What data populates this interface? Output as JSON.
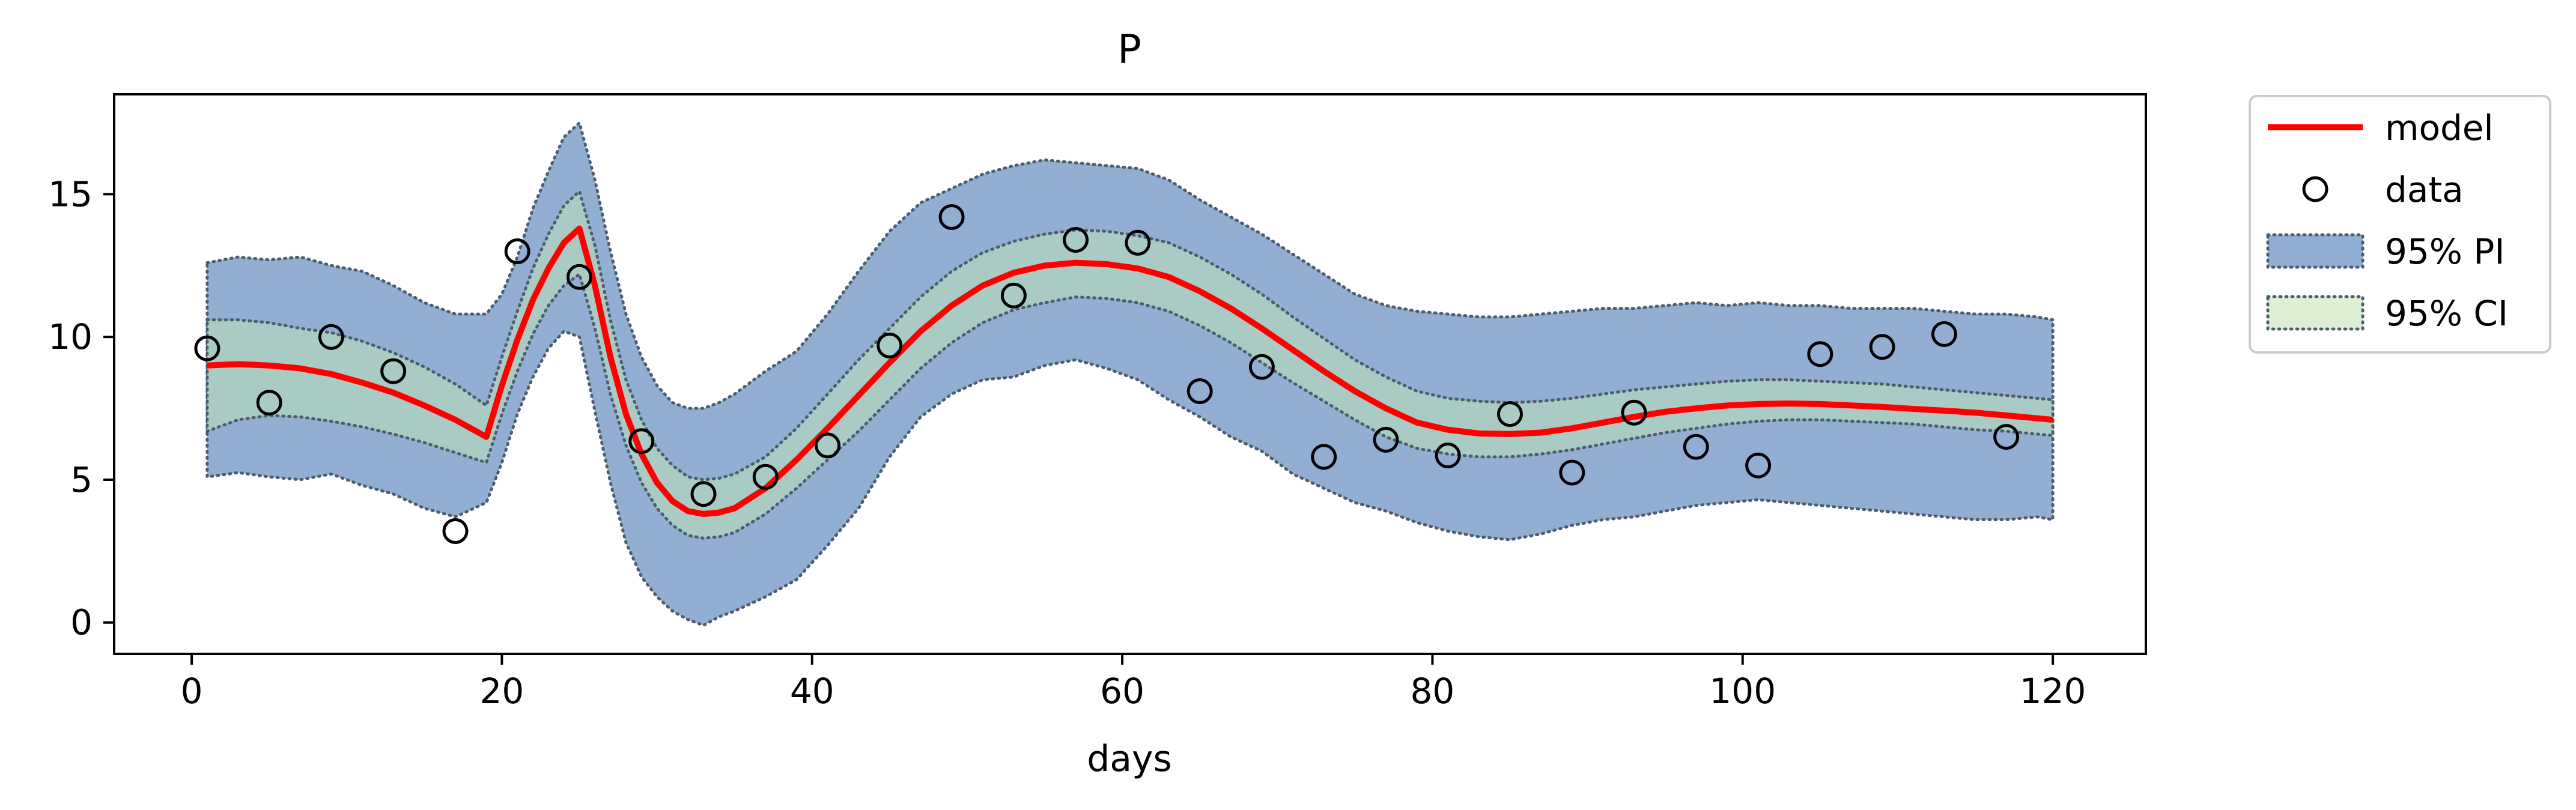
{
  "chart_data": {
    "type": "line",
    "title": "P",
    "xlabel": "days",
    "ylabel": "",
    "xlim": [
      -5,
      126
    ],
    "ylim": [
      -1.1,
      18.5
    ],
    "xticks": [
      0,
      20,
      40,
      60,
      80,
      100,
      120
    ],
    "yticks": [
      0,
      5,
      10,
      15
    ],
    "grid": false,
    "legend": {
      "placement": "outside-top-right",
      "entries": [
        "model",
        "data",
        "95% PI",
        "95% CI"
      ]
    },
    "colors": {
      "model": "#ff0000",
      "data_edge": "#000000",
      "pi_fill": "#92aed2",
      "ci_fill": "#a9cbc4",
      "ci_legend_fill": "#ddefd4",
      "band_edge": "#4d5d6e"
    },
    "series": [
      {
        "name": "model",
        "kind": "line",
        "x": [
          1,
          3,
          5,
          7,
          9,
          11,
          13,
          15,
          17,
          19,
          20,
          21,
          22,
          23,
          24,
          25,
          26,
          27,
          28,
          29,
          30,
          31,
          32,
          33,
          34,
          35,
          37,
          39,
          41,
          43,
          45,
          47,
          49,
          51,
          53,
          55,
          57,
          59,
          61,
          63,
          65,
          67,
          69,
          71,
          73,
          75,
          77,
          79,
          81,
          83,
          85,
          87,
          89,
          91,
          93,
          95,
          97,
          99,
          101,
          103,
          105,
          107,
          109,
          111,
          113,
          115,
          117,
          119,
          120
        ],
        "y": [
          9.0,
          9.05,
          9.0,
          8.9,
          8.7,
          8.4,
          8.05,
          7.6,
          7.1,
          6.5,
          8.3,
          9.9,
          11.3,
          12.4,
          13.3,
          13.8,
          11.8,
          9.3,
          7.3,
          5.9,
          4.9,
          4.25,
          3.9,
          3.8,
          3.85,
          4.0,
          4.7,
          5.7,
          6.8,
          7.95,
          9.1,
          10.2,
          11.1,
          11.8,
          12.25,
          12.5,
          12.6,
          12.55,
          12.4,
          12.1,
          11.6,
          11.0,
          10.3,
          9.55,
          8.8,
          8.1,
          7.5,
          7.0,
          6.75,
          6.62,
          6.6,
          6.65,
          6.8,
          7.0,
          7.2,
          7.38,
          7.5,
          7.6,
          7.65,
          7.67,
          7.65,
          7.6,
          7.55,
          7.48,
          7.42,
          7.35,
          7.25,
          7.15,
          7.1
        ]
      },
      {
        "name": "data",
        "kind": "scatter",
        "x": [
          1,
          5,
          9,
          13,
          17,
          21,
          25,
          29,
          33,
          37,
          41,
          45,
          49,
          53,
          57,
          61,
          65,
          69,
          73,
          77,
          81,
          85,
          89,
          93,
          97,
          101,
          105,
          109,
          113,
          117
        ],
        "y": [
          9.6,
          7.7,
          10.0,
          8.8,
          3.2,
          13.0,
          12.1,
          6.35,
          4.5,
          5.1,
          6.2,
          9.7,
          14.2,
          11.45,
          13.4,
          13.3,
          8.1,
          8.95,
          5.8,
          6.4,
          5.85,
          7.3,
          5.25,
          7.35,
          6.15,
          5.5,
          9.4,
          9.65,
          10.1,
          6.5
        ]
      },
      {
        "name": "95% PI",
        "kind": "band",
        "x": [
          1,
          3,
          5,
          7,
          9,
          11,
          13,
          15,
          17,
          19,
          20,
          21,
          22,
          23,
          24,
          25,
          26,
          27,
          28,
          29,
          30,
          31,
          32,
          33,
          34,
          35,
          37,
          39,
          41,
          43,
          45,
          47,
          49,
          51,
          53,
          55,
          57,
          59,
          61,
          63,
          65,
          67,
          69,
          71,
          73,
          75,
          77,
          79,
          81,
          83,
          85,
          87,
          89,
          91,
          93,
          95,
          97,
          99,
          101,
          103,
          105,
          107,
          109,
          111,
          113,
          115,
          117,
          119,
          120
        ],
        "lower": [
          5.1,
          5.25,
          5.1,
          5.0,
          5.2,
          4.8,
          4.5,
          4.0,
          3.7,
          4.2,
          5.6,
          7.3,
          8.6,
          9.6,
          10.2,
          10.0,
          7.4,
          4.9,
          2.8,
          1.6,
          0.9,
          0.4,
          0.1,
          -0.1,
          0.2,
          0.4,
          0.9,
          1.5,
          2.7,
          4.0,
          5.8,
          7.2,
          8.0,
          8.5,
          8.6,
          9.0,
          9.2,
          8.9,
          8.5,
          7.8,
          7.2,
          6.5,
          6.0,
          5.2,
          4.7,
          4.2,
          3.9,
          3.5,
          3.2,
          3.0,
          2.9,
          3.1,
          3.4,
          3.6,
          3.7,
          3.9,
          4.1,
          4.2,
          4.3,
          4.2,
          4.1,
          4.0,
          3.9,
          3.8,
          3.7,
          3.6,
          3.6,
          3.7,
          3.6
        ],
        "upper": [
          12.6,
          12.8,
          12.7,
          12.8,
          12.5,
          12.3,
          11.8,
          11.2,
          10.8,
          10.8,
          11.5,
          12.8,
          14.5,
          15.8,
          17.0,
          17.5,
          15.5,
          13.0,
          10.8,
          9.3,
          8.3,
          7.7,
          7.5,
          7.5,
          7.7,
          8.0,
          8.8,
          9.5,
          10.8,
          12.3,
          13.7,
          14.7,
          15.2,
          15.7,
          16.0,
          16.2,
          16.1,
          16.0,
          15.9,
          15.5,
          14.8,
          14.2,
          13.6,
          12.9,
          12.2,
          11.5,
          11.1,
          10.9,
          10.8,
          10.7,
          10.7,
          10.8,
          10.9,
          11.0,
          11.0,
          11.1,
          11.2,
          11.1,
          11.2,
          11.1,
          11.1,
          11.0,
          11.0,
          11.0,
          10.9,
          10.8,
          10.8,
          10.7,
          10.6
        ]
      },
      {
        "name": "95% CI",
        "kind": "band",
        "x": [
          1,
          3,
          5,
          7,
          9,
          11,
          13,
          15,
          17,
          19,
          20,
          21,
          22,
          23,
          24,
          25,
          26,
          27,
          28,
          29,
          30,
          31,
          32,
          33,
          34,
          35,
          37,
          39,
          41,
          43,
          45,
          47,
          49,
          51,
          53,
          55,
          57,
          59,
          61,
          63,
          65,
          67,
          69,
          71,
          73,
          75,
          77,
          79,
          81,
          83,
          85,
          87,
          89,
          91,
          93,
          95,
          97,
          99,
          101,
          103,
          105,
          107,
          109,
          111,
          113,
          115,
          117,
          119,
          120
        ],
        "lower": [
          6.7,
          7.1,
          7.25,
          7.2,
          7.05,
          6.85,
          6.6,
          6.3,
          5.95,
          5.6,
          7.3,
          8.8,
          10.1,
          11.1,
          11.8,
          12.2,
          10.3,
          8.0,
          6.2,
          4.9,
          4.0,
          3.4,
          3.05,
          2.95,
          3.0,
          3.15,
          3.8,
          4.7,
          5.7,
          6.7,
          7.8,
          8.9,
          9.8,
          10.5,
          10.95,
          11.2,
          11.4,
          11.35,
          11.2,
          10.9,
          10.4,
          9.8,
          9.1,
          8.4,
          7.75,
          7.1,
          6.5,
          6.1,
          5.9,
          5.8,
          5.8,
          5.9,
          6.05,
          6.25,
          6.45,
          6.65,
          6.8,
          6.95,
          7.05,
          7.1,
          7.1,
          7.05,
          7.0,
          6.95,
          6.85,
          6.75,
          6.7,
          6.6,
          6.55
        ],
        "upper": [
          10.6,
          10.6,
          10.5,
          10.3,
          10.15,
          9.85,
          9.45,
          8.95,
          8.35,
          7.6,
          9.3,
          10.9,
          12.4,
          13.6,
          14.6,
          15.1,
          13.2,
          10.6,
          8.5,
          7.1,
          6.1,
          5.5,
          5.1,
          5.0,
          5.05,
          5.2,
          5.8,
          6.8,
          8.0,
          9.2,
          10.3,
          11.4,
          12.3,
          12.95,
          13.35,
          13.6,
          13.75,
          13.7,
          13.55,
          13.3,
          12.8,
          12.2,
          11.5,
          10.7,
          9.95,
          9.2,
          8.6,
          8.1,
          7.85,
          7.75,
          7.7,
          7.75,
          7.85,
          8.0,
          8.15,
          8.25,
          8.35,
          8.45,
          8.5,
          8.5,
          8.45,
          8.4,
          8.35,
          8.25,
          8.15,
          8.05,
          7.95,
          7.85,
          7.8
        ]
      }
    ]
  }
}
